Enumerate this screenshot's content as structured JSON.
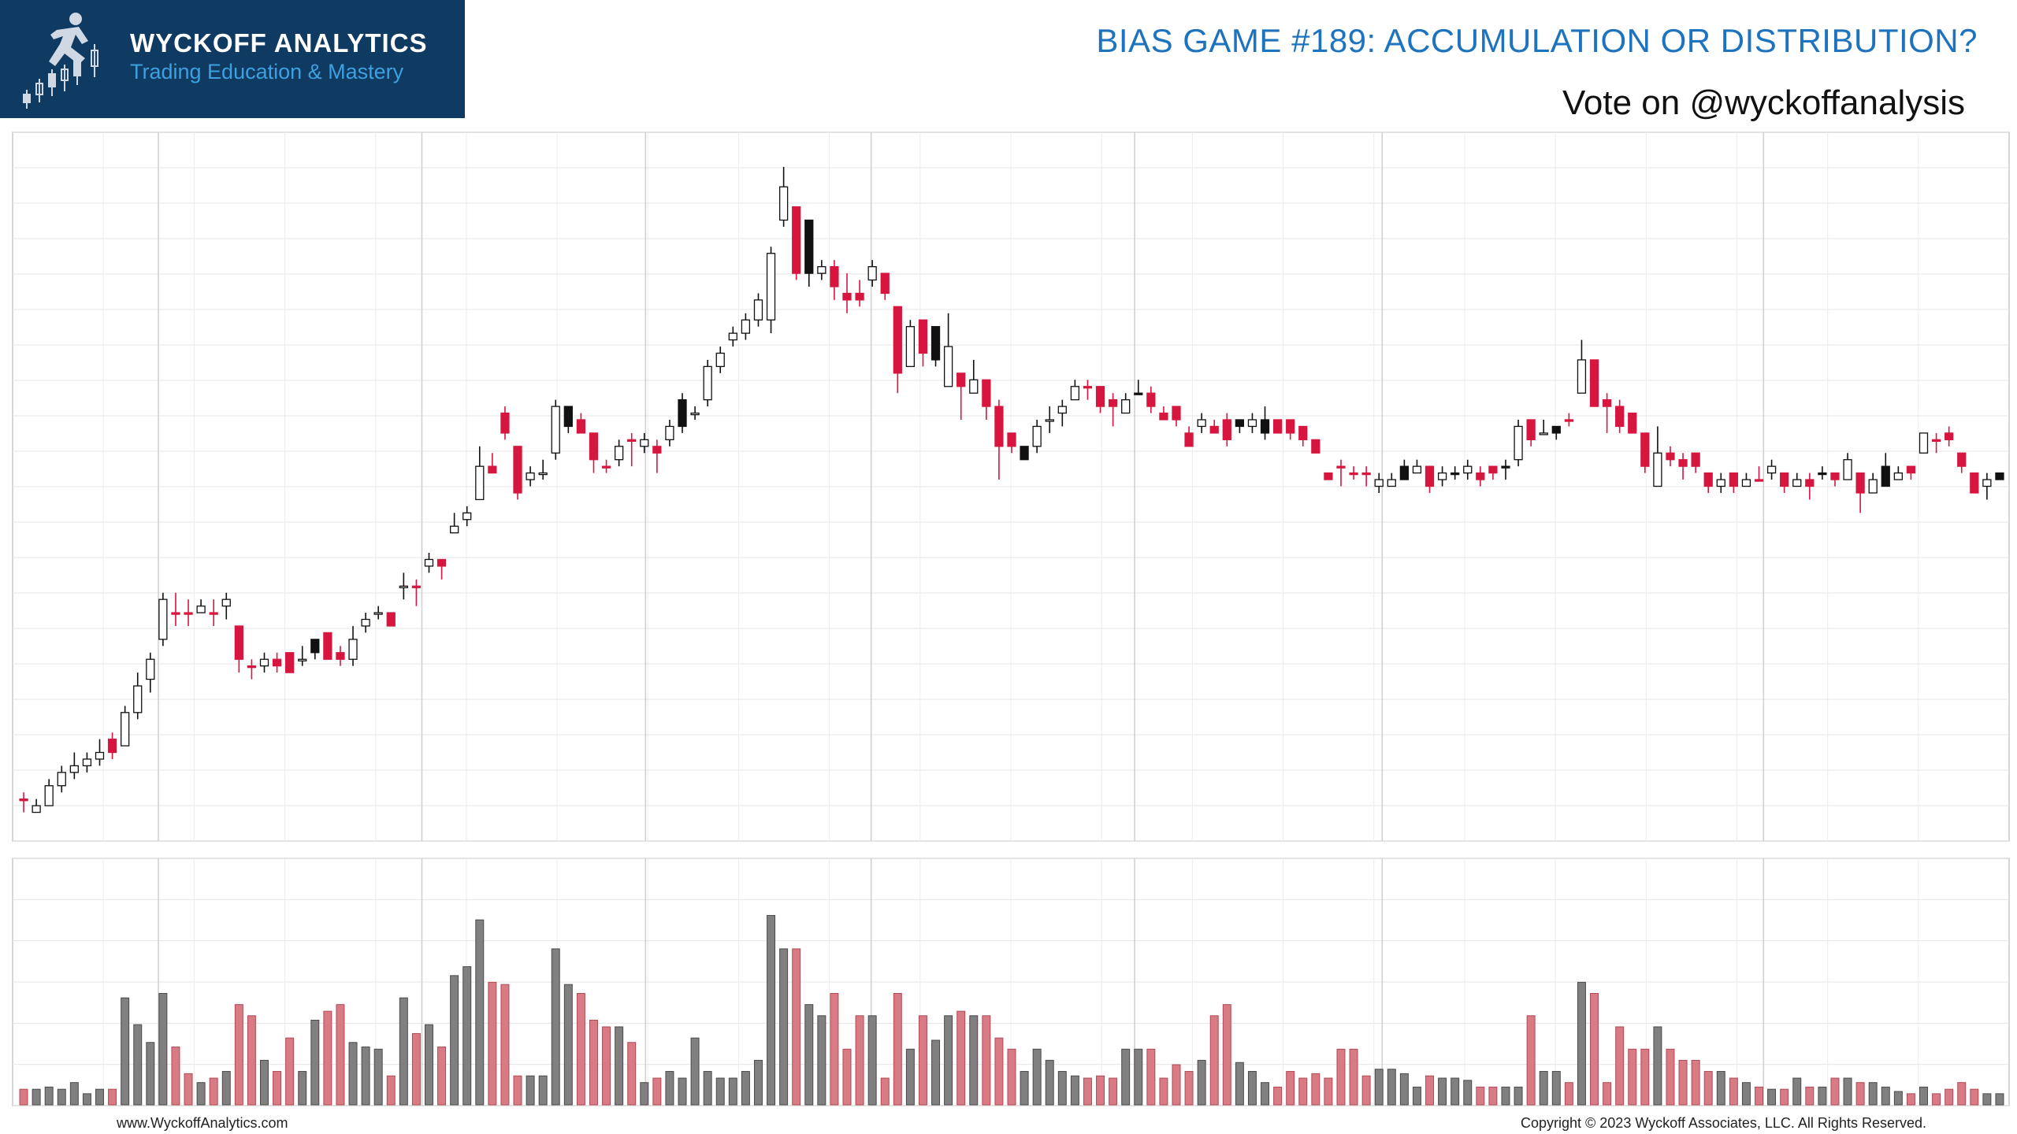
{
  "header": {
    "logo_name": "WYCKOFF ANALYTICS",
    "logo_tagline": "Trading Education & Mastery",
    "title": "BIAS GAME #189: ACCUMULATION OR DISTRIBUTION?",
    "subtitle": "Vote on @wyckoffanalysis"
  },
  "footer": {
    "website": "www.WyckoffAnalytics.com",
    "copyright": "Copyright © 2023 Wyckoff Associates, LLC. All Rights Reserved."
  },
  "colors": {
    "up": "#ffffff",
    "down_red": "#d6163e",
    "down_black": "#111111",
    "vol_red": "#d97b84",
    "vol_gray": "#808080",
    "logo_bg": "#0f3a62",
    "title_blue": "#1e73be"
  },
  "chart_data": {
    "type": "candlestick",
    "price_range": [
      0,
      100
    ],
    "volume_range": [
      0,
      100
    ],
    "grid": true,
    "bars": [
      [
        3,
        3,
        4,
        1,
        "R",
        7
      ],
      [
        1,
        2,
        3,
        1,
        "W",
        7
      ],
      [
        2,
        5,
        6,
        2,
        "W",
        8
      ],
      [
        5,
        7,
        8,
        4,
        "W",
        7
      ],
      [
        7,
        8,
        10,
        6,
        "W",
        10
      ],
      [
        8,
        9,
        10,
        7,
        "W",
        5
      ],
      [
        9,
        10,
        12,
        8,
        "W",
        7
      ],
      [
        10,
        12,
        13,
        9,
        "R",
        7
      ],
      [
        11,
        16,
        17,
        11,
        "W",
        48
      ],
      [
        16,
        20,
        22,
        15,
        "W",
        36
      ],
      [
        21,
        24,
        25,
        19,
        "W",
        28
      ],
      [
        27,
        33,
        34,
        26,
        "W",
        50
      ],
      [
        31,
        31,
        34,
        29,
        "R",
        26
      ],
      [
        31,
        31,
        33,
        29,
        "R",
        14
      ],
      [
        31,
        32,
        33,
        31,
        "W",
        10
      ],
      [
        31,
        31,
        33,
        29,
        "R",
        12
      ],
      [
        32,
        33,
        34,
        30,
        "W",
        15
      ],
      [
        29,
        24,
        29,
        22,
        "R",
        45
      ],
      [
        23,
        23,
        24,
        21,
        "R",
        40
      ],
      [
        23,
        24,
        25,
        22,
        "W",
        20
      ],
      [
        24,
        23,
        25,
        22,
        "R",
        15
      ],
      [
        25,
        22,
        25,
        22,
        "R",
        30
      ],
      [
        24,
        24,
        26,
        23,
        "W",
        15
      ],
      [
        25,
        27,
        27,
        24,
        "B",
        38
      ],
      [
        28,
        24,
        28,
        24,
        "R",
        42
      ],
      [
        24,
        25,
        26,
        23,
        "R",
        45
      ],
      [
        24,
        27,
        29,
        23,
        "W",
        28
      ],
      [
        29,
        30,
        31,
        28,
        "W",
        26
      ],
      [
        31,
        31,
        32,
        30,
        "W",
        25
      ],
      [
        31,
        29,
        31,
        29,
        "R",
        13
      ],
      [
        35,
        35,
        37,
        33,
        "W",
        48
      ],
      [
        35,
        35,
        36,
        32,
        "R",
        32
      ],
      [
        38,
        39,
        40,
        37,
        "W",
        36
      ],
      [
        39,
        38,
        39,
        36,
        "R",
        26
      ],
      [
        43,
        44,
        46,
        43,
        "W",
        58
      ],
      [
        45,
        46,
        47,
        44,
        "W",
        62
      ],
      [
        48,
        53,
        56,
        48,
        "W",
        83
      ],
      [
        52,
        53,
        55,
        52,
        "R",
        55
      ],
      [
        58,
        61,
        62,
        57,
        "R",
        54
      ],
      [
        56,
        49,
        56,
        48,
        "R",
        13
      ],
      [
        52,
        51,
        53,
        50,
        "W",
        13
      ],
      [
        52,
        52,
        54,
        51,
        "W",
        13
      ],
      [
        55,
        62,
        63,
        54,
        "W",
        70
      ],
      [
        62,
        59,
        62,
        58,
        "B",
        54
      ],
      [
        60,
        58,
        61,
        58,
        "R",
        50
      ],
      [
        58,
        54,
        58,
        52,
        "R",
        38
      ],
      [
        53,
        53,
        54,
        52,
        "R",
        35
      ],
      [
        54,
        56,
        57,
        53,
        "W",
        35
      ],
      [
        57,
        57,
        58,
        53,
        "R",
        28
      ],
      [
        56,
        57,
        58,
        55,
        "W",
        10
      ],
      [
        56,
        55,
        57,
        52,
        "R",
        12
      ],
      [
        57,
        59,
        60,
        56,
        "W",
        15
      ],
      [
        63,
        59,
        64,
        58,
        "B",
        12
      ],
      [
        61,
        61,
        62,
        60,
        "W",
        30
      ],
      [
        63,
        68,
        69,
        62,
        "W",
        15
      ],
      [
        68,
        70,
        71,
        67,
        "W",
        12
      ],
      [
        72,
        73,
        74,
        71,
        "W",
        12
      ],
      [
        73,
        75,
        76,
        72,
        "W",
        15
      ],
      [
        75,
        78,
        79,
        74,
        "W",
        20
      ],
      [
        75,
        85,
        86,
        73,
        "W",
        85
      ],
      [
        90,
        95,
        98,
        89,
        "W",
        70
      ],
      [
        92,
        82,
        92,
        81,
        "R",
        70
      ],
      [
        90,
        82,
        90,
        80,
        "B",
        45
      ],
      [
        82,
        83,
        84,
        81,
        "W",
        40
      ],
      [
        83,
        80,
        84,
        78,
        "R",
        50
      ],
      [
        78,
        79,
        82,
        76,
        "R",
        25
      ],
      [
        79,
        78,
        81,
        77,
        "R",
        40
      ],
      [
        81,
        83,
        84,
        80,
        "W",
        40
      ],
      [
        82,
        79,
        82,
        78,
        "R",
        12
      ],
      [
        77,
        67,
        77,
        64,
        "R",
        50
      ],
      [
        68,
        74,
        75,
        68,
        "W",
        25
      ],
      [
        75,
        70,
        75,
        68,
        "R",
        40
      ],
      [
        74,
        69,
        74,
        68,
        "B",
        29
      ],
      [
        65,
        71,
        76,
        65,
        "W",
        40
      ],
      [
        67,
        65,
        67,
        60,
        "R",
        42
      ],
      [
        64,
        66,
        69,
        64,
        "W",
        40
      ],
      [
        66,
        62,
        66,
        60,
        "R",
        40
      ],
      [
        62,
        56,
        63,
        51,
        "R",
        30
      ],
      [
        58,
        56,
        58,
        55,
        "R",
        25
      ],
      [
        56,
        54,
        56,
        55,
        "B",
        15
      ],
      [
        56,
        59,
        60,
        55,
        "W",
        25
      ],
      [
        60,
        60,
        62,
        58,
        "W",
        20
      ],
      [
        61,
        62,
        63,
        59,
        "W",
        15
      ],
      [
        63,
        65,
        66,
        63,
        "W",
        13
      ],
      [
        65,
        65,
        66,
        63,
        "R",
        12
      ],
      [
        65,
        62,
        65,
        61,
        "R",
        13
      ],
      [
        63,
        62,
        64,
        59,
        "R",
        12
      ],
      [
        61,
        63,
        64,
        61,
        "W",
        25
      ],
      [
        64,
        64,
        66,
        64,
        "B",
        25
      ],
      [
        64,
        62,
        65,
        61,
        "R",
        25
      ],
      [
        61,
        60,
        62,
        60,
        "R",
        12
      ],
      [
        62,
        60,
        62,
        59,
        "R",
        18
      ],
      [
        58,
        56,
        59,
        56,
        "R",
        15
      ],
      [
        59,
        60,
        61,
        58,
        "W",
        20
      ],
      [
        59,
        58,
        60,
        58,
        "R",
        40
      ],
      [
        57,
        60,
        61,
        56,
        "R",
        45
      ],
      [
        60,
        59,
        60,
        58,
        "B",
        19
      ],
      [
        59,
        60,
        61,
        58,
        "W",
        15
      ],
      [
        60,
        58,
        62,
        57,
        "B",
        10
      ],
      [
        60,
        58,
        60,
        58,
        "R",
        8
      ],
      [
        60,
        58,
        60,
        57,
        "R",
        15
      ],
      [
        59,
        57,
        59,
        56,
        "R",
        12
      ],
      [
        57,
        55,
        57,
        55,
        "R",
        14
      ],
      [
        51,
        52,
        52,
        51,
        "R",
        12
      ],
      [
        53,
        53,
        54,
        50,
        "R",
        25
      ],
      [
        52,
        52,
        53,
        51,
        "R",
        25
      ],
      [
        52,
        52,
        53,
        50,
        "R",
        13
      ],
      [
        50,
        51,
        52,
        49,
        "W",
        16
      ],
      [
        50,
        51,
        52,
        50,
        "W",
        16
      ],
      [
        51,
        53,
        54,
        51,
        "B",
        14
      ],
      [
        52,
        53,
        54,
        52,
        "W",
        8
      ],
      [
        53,
        50,
        53,
        49,
        "R",
        13
      ],
      [
        51,
        52,
        53,
        50,
        "W",
        12
      ],
      [
        52,
        52,
        53,
        51,
        "B",
        12
      ],
      [
        52,
        53,
        54,
        51,
        "W",
        11
      ],
      [
        52,
        51,
        53,
        50,
        "R",
        8
      ],
      [
        53,
        52,
        53,
        51,
        "R",
        8
      ],
      [
        53,
        53,
        54,
        51,
        "B",
        8
      ],
      [
        54,
        59,
        60,
        53,
        "W",
        8
      ],
      [
        60,
        57,
        60,
        56,
        "R",
        40
      ],
      [
        58,
        58,
        60,
        58,
        "W",
        15
      ],
      [
        58,
        59,
        59,
        57,
        "B",
        15
      ],
      [
        60,
        60,
        61,
        59,
        "R",
        10
      ],
      [
        64,
        69,
        72,
        64,
        "W",
        55
      ],
      [
        69,
        62,
        69,
        63,
        "R",
        50
      ],
      [
        63,
        62,
        64,
        58,
        "R",
        10
      ],
      [
        62,
        59,
        63,
        58,
        "R",
        35
      ],
      [
        61,
        58,
        61,
        58,
        "R",
        25
      ],
      [
        58,
        53,
        58,
        52,
        "R",
        25
      ],
      [
        50,
        55,
        59,
        52,
        "W",
        35
      ],
      [
        54,
        55,
        56,
        53,
        "R",
        25
      ],
      [
        54,
        53,
        55,
        51,
        "R",
        20
      ],
      [
        55,
        53,
        55,
        52,
        "R",
        20
      ],
      [
        52,
        50,
        52,
        49,
        "R",
        15
      ],
      [
        51,
        50,
        52,
        49,
        "W",
        15
      ],
      [
        50,
        52,
        52,
        49,
        "R",
        12
      ],
      [
        50,
        51,
        52,
        50,
        "W",
        10
      ],
      [
        51,
        51,
        53,
        52,
        "R",
        8
      ],
      [
        52,
        53,
        54,
        51,
        "W",
        7
      ],
      [
        52,
        50,
        52,
        49,
        "R",
        7
      ],
      [
        51,
        50,
        52,
        50,
        "W",
        12
      ],
      [
        50,
        51,
        52,
        48,
        "R",
        8
      ],
      [
        52,
        52,
        53,
        51,
        "B",
        8
      ],
      [
        52,
        51,
        52,
        50,
        "R",
        12
      ],
      [
        51,
        54,
        55,
        51,
        "W",
        12
      ],
      [
        52,
        49,
        52,
        46,
        "R",
        10
      ],
      [
        49,
        51,
        52,
        49,
        "W",
        10
      ],
      [
        50,
        53,
        55,
        50,
        "B",
        8
      ],
      [
        52,
        51,
        53,
        51,
        "W",
        6
      ],
      [
        53,
        52,
        53,
        51,
        "R",
        5
      ],
      [
        55,
        58,
        58,
        56,
        "W",
        8
      ],
      [
        57,
        57,
        58,
        55,
        "R",
        5
      ],
      [
        58,
        57,
        59,
        56,
        "R",
        7
      ],
      [
        55,
        53,
        55,
        52,
        "R",
        10
      ],
      [
        52,
        49,
        52,
        49,
        "R",
        7
      ],
      [
        50,
        51,
        52,
        48,
        "W",
        5
      ],
      [
        51,
        52,
        52,
        51,
        "B",
        5
      ]
    ]
  }
}
